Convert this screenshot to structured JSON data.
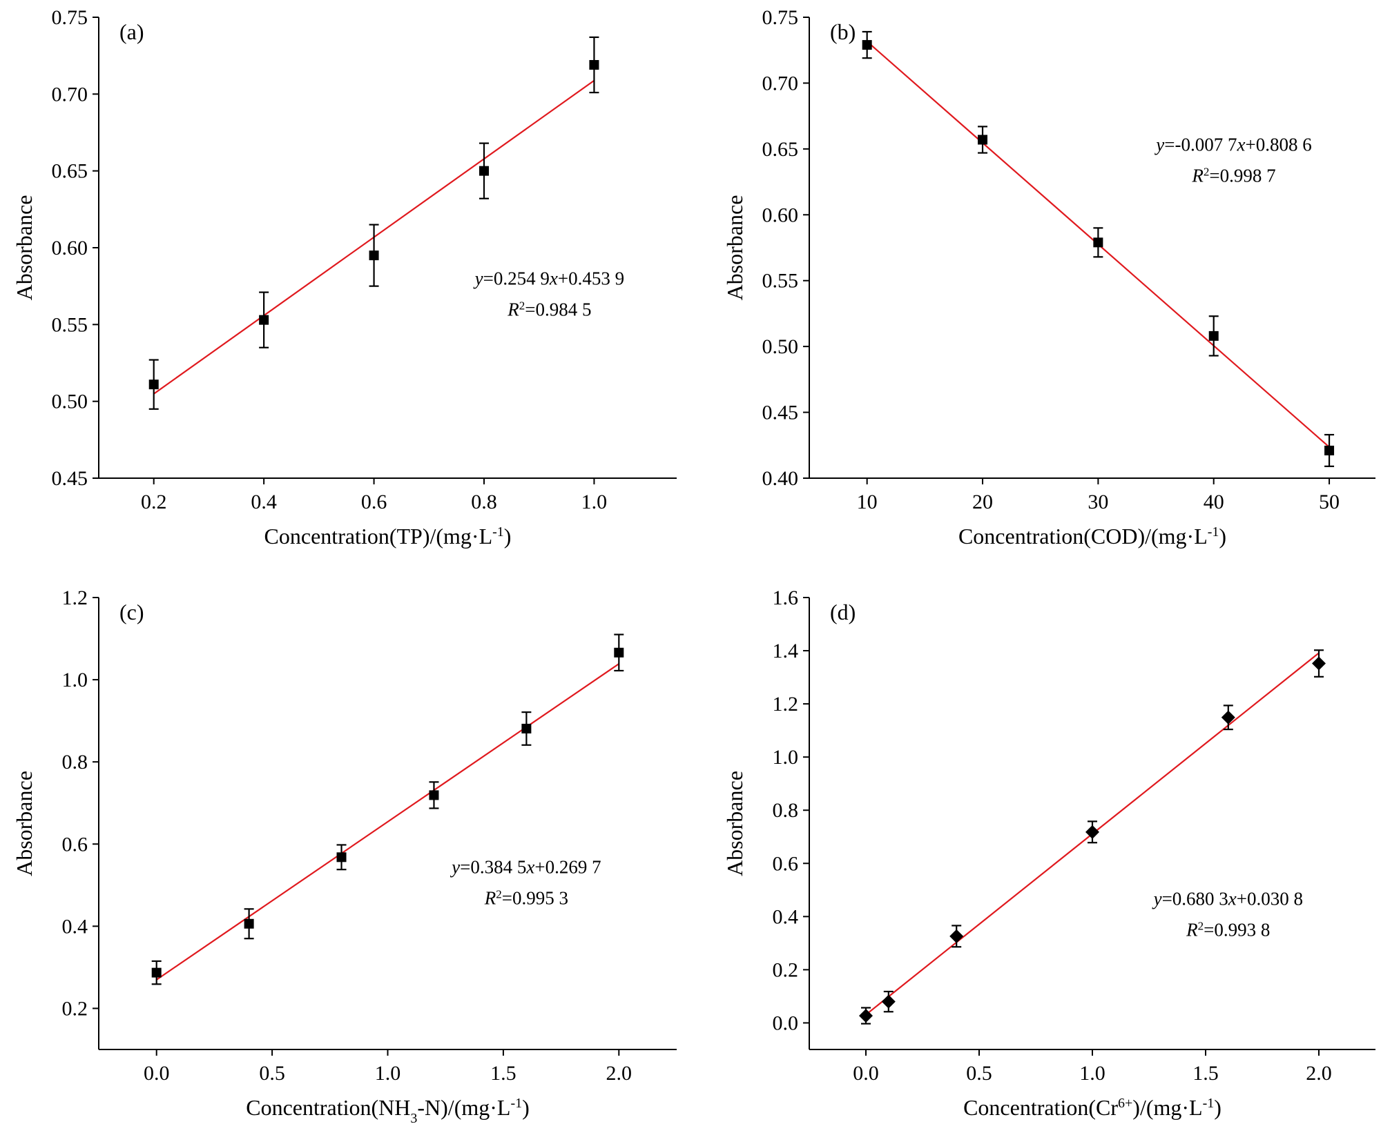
{
  "chart_data": [
    {
      "type": "scatter",
      "panel_label": "(a)",
      "xlabel_parts": [
        {
          "t": "Concentration(TP)/(mg·L"
        },
        {
          "t": "-1",
          "sup": true
        },
        {
          "t": ")"
        }
      ],
      "ylabel": "Absorbance",
      "xlim": [
        0.1,
        1.15
      ],
      "ylim": [
        0.45,
        0.75
      ],
      "xticks": [
        0.2,
        0.4,
        0.6,
        0.8,
        1.0
      ],
      "xtick_labels": [
        "0.2",
        "0.4",
        "0.6",
        "0.8",
        "1.0"
      ],
      "yticks": [
        0.45,
        0.5,
        0.55,
        0.6,
        0.65,
        0.7,
        0.75
      ],
      "ytick_labels": [
        "0.45",
        "0.50",
        "0.55",
        "0.60",
        "0.65",
        "0.70",
        "0.75"
      ],
      "marker": "square",
      "series": [
        {
          "x": [
            0.2,
            0.4,
            0.6,
            0.8,
            1.0
          ],
          "y": [
            0.511,
            0.553,
            0.595,
            0.65,
            0.719
          ],
          "error": [
            0.016,
            0.018,
            0.02,
            0.018,
            0.018
          ]
        }
      ],
      "fit": {
        "slope": 0.2549,
        "intercept": 0.4539,
        "x_range": [
          0.2,
          1.0
        ]
      },
      "equation_lines": [
        [
          {
            "t": "y",
            "i": true
          },
          {
            "t": "=0.254 9"
          },
          {
            "t": "x",
            "i": true
          },
          {
            "t": "+0.453 9"
          }
        ],
        [
          {
            "t": "R",
            "i": true
          },
          {
            "t": "2",
            "sup": true
          },
          {
            "t": "=0.984 5"
          }
        ]
      ],
      "equation_position": [
        0.78,
        0.58
      ]
    },
    {
      "type": "scatter",
      "panel_label": "(b)",
      "xlabel_parts": [
        {
          "t": "Concentration(COD)/(mg·L"
        },
        {
          "t": "-1",
          "sup": true
        },
        {
          "t": ")"
        }
      ],
      "ylabel": "Absorbance",
      "xlim": [
        5,
        54
      ],
      "ylim": [
        0.4,
        0.75
      ],
      "xticks": [
        10,
        20,
        30,
        40,
        50
      ],
      "xtick_labels": [
        "10",
        "20",
        "30",
        "40",
        "50"
      ],
      "yticks": [
        0.4,
        0.45,
        0.5,
        0.55,
        0.6,
        0.65,
        0.7,
        0.75
      ],
      "ytick_labels": [
        "0.40",
        "0.45",
        "0.50",
        "0.55",
        "0.60",
        "0.65",
        "0.70",
        "0.75"
      ],
      "marker": "square",
      "series": [
        {
          "x": [
            10,
            20,
            30,
            40,
            50
          ],
          "y": [
            0.729,
            0.657,
            0.579,
            0.508,
            0.421
          ],
          "error": [
            0.01,
            0.01,
            0.011,
            0.015,
            0.012
          ]
        }
      ],
      "fit": {
        "slope": -0.0077,
        "intercept": 0.8086,
        "x_range": [
          10,
          50
        ]
      },
      "equation_lines": [
        [
          {
            "t": "y",
            "i": true
          },
          {
            "t": "=-0.007 7"
          },
          {
            "t": "x",
            "i": true
          },
          {
            "t": "+0.808 6"
          }
        ],
        [
          {
            "t": "R",
            "i": true
          },
          {
            "t": "2",
            "sup": true
          },
          {
            "t": "=0.998 7"
          }
        ]
      ],
      "equation_position": [
        0.75,
        0.29
      ]
    },
    {
      "type": "scatter",
      "panel_label": "(c)",
      "xlabel_parts": [
        {
          "t": "Concentration(NH"
        },
        {
          "t": "3",
          "sub": true
        },
        {
          "t": "-N)/(mg·L"
        },
        {
          "t": "-1",
          "sup": true
        },
        {
          "t": ")"
        }
      ],
      "ylabel": "Absorbance",
      "xlim": [
        -0.25,
        2.25
      ],
      "ylim": [
        0.1,
        1.2
      ],
      "xticks": [
        0.0,
        0.5,
        1.0,
        1.5,
        2.0
      ],
      "xtick_labels": [
        "0.0",
        "0.5",
        "1.0",
        "1.5",
        "2.0"
      ],
      "yticks": [
        0.2,
        0.4,
        0.6,
        0.8,
        1.0,
        1.2
      ],
      "ytick_labels": [
        "0.2",
        "0.4",
        "0.6",
        "0.8",
        "1.0",
        "1.2"
      ],
      "marker": "square",
      "series": [
        {
          "x": [
            0.0,
            0.4,
            0.8,
            1.2,
            1.6,
            2.0
          ],
          "y": [
            0.287,
            0.406,
            0.568,
            0.719,
            0.881,
            1.066
          ],
          "error": [
            0.028,
            0.036,
            0.03,
            0.032,
            0.04,
            0.044
          ]
        }
      ],
      "fit": {
        "slope": 0.3845,
        "intercept": 0.2697,
        "x_range": [
          0.0,
          2.0
        ]
      },
      "equation_lines": [
        [
          {
            "t": "y",
            "i": true
          },
          {
            "t": "=0.384 5"
          },
          {
            "t": "x",
            "i": true
          },
          {
            "t": "+0.269 7"
          }
        ],
        [
          {
            "t": "R",
            "i": true
          },
          {
            "t": "2",
            "sup": true
          },
          {
            "t": "=0.995 3"
          }
        ]
      ],
      "equation_position": [
        0.74,
        0.61
      ]
    },
    {
      "type": "scatter",
      "panel_label": "(d)",
      "xlabel_parts": [
        {
          "t": "Concentration(Cr"
        },
        {
          "t": "6+",
          "sup": true
        },
        {
          "t": ")/(mg·L"
        },
        {
          "t": "-1",
          "sup": true
        },
        {
          "t": ")"
        }
      ],
      "ylabel": "Absorbance",
      "xlim": [
        -0.25,
        2.25
      ],
      "ylim": [
        -0.1,
        1.6
      ],
      "xticks": [
        0.0,
        0.5,
        1.0,
        1.5,
        2.0
      ],
      "xtick_labels": [
        "0.0",
        "0.5",
        "1.0",
        "1.5",
        "2.0"
      ],
      "yticks": [
        0.0,
        0.2,
        0.4,
        0.6,
        0.8,
        1.0,
        1.2,
        1.4,
        1.6
      ],
      "ytick_labels": [
        "0.0",
        "0.2",
        "0.4",
        "0.6",
        "0.8",
        "1.0",
        "1.2",
        "1.4",
        "1.6"
      ],
      "marker": "diamond",
      "series": [
        {
          "x": [
            0.0,
            0.1,
            0.4,
            1.0,
            1.6,
            2.0
          ],
          "y": [
            0.027,
            0.08,
            0.326,
            0.718,
            1.149,
            1.352
          ],
          "error": [
            0.03,
            0.038,
            0.04,
            0.04,
            0.045,
            0.05
          ]
        }
      ],
      "fit": {
        "slope": 0.6803,
        "intercept": 0.0308,
        "x_range": [
          0.0,
          2.0
        ]
      },
      "equation_lines": [
        [
          {
            "t": "y",
            "i": true
          },
          {
            "t": "=0.680 3"
          },
          {
            "t": "x",
            "i": true
          },
          {
            "t": "+0.030 8"
          }
        ],
        [
          {
            "t": "R",
            "i": true
          },
          {
            "t": "2",
            "sup": true
          },
          {
            "t": "=0.993 8"
          }
        ]
      ],
      "equation_position": [
        0.74,
        0.68
      ]
    }
  ]
}
